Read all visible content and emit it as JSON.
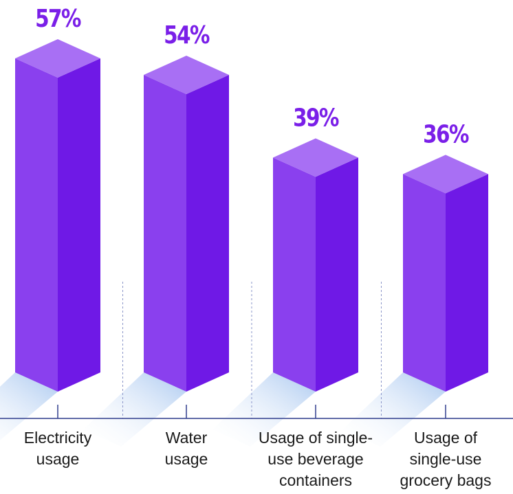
{
  "chart_data": {
    "type": "bar",
    "categories": [
      "Electricity\nusage",
      "Water\nusage",
      "Usage of single-\nuse beverage\ncontainers",
      "Usage of\nsingle-use\ngrocery bags"
    ],
    "values": [
      57,
      54,
      39,
      36
    ],
    "value_labels": [
      "57%",
      "54%",
      "39%",
      "36%"
    ],
    "ylim": [
      0,
      57
    ],
    "grid": false,
    "legend": "none"
  },
  "colors": {
    "bar_front": "#8a40ee",
    "bar_side": "#6f19e6",
    "bar_top": "#a86ff4",
    "value_label": "#7a1fe8",
    "axis": "#2f3c8c",
    "divider": "#8a94c8",
    "shadow": "#bcd3f3"
  }
}
